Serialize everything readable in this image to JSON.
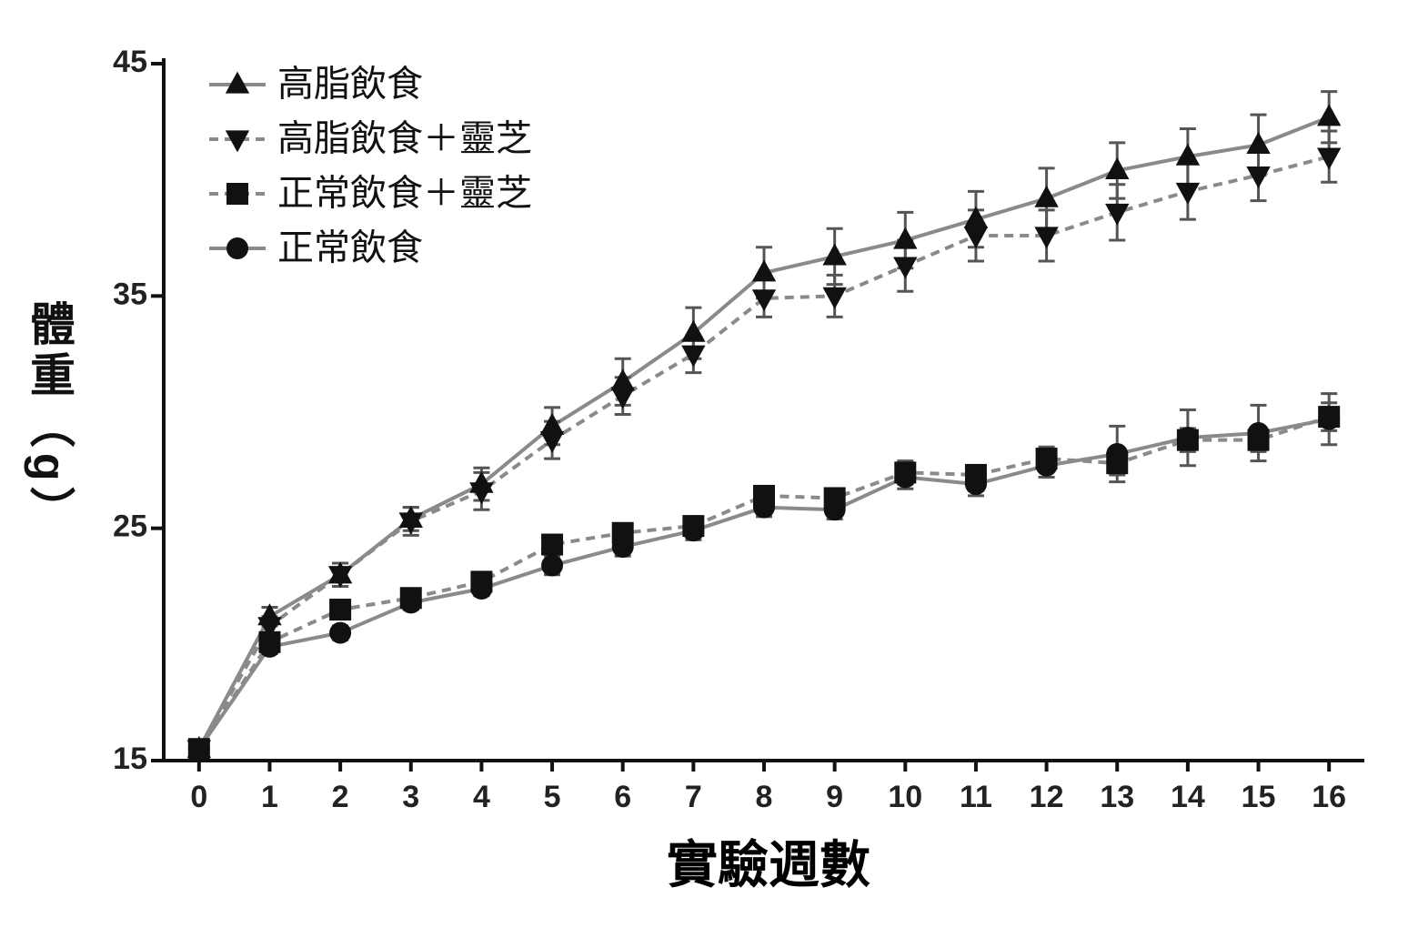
{
  "chart_data": {
    "type": "line",
    "y_label": "體重（g）",
    "x_label": "實驗週數",
    "x": [
      0,
      1,
      2,
      3,
      4,
      5,
      6,
      7,
      8,
      9,
      10,
      11,
      12,
      13,
      14,
      15,
      16
    ],
    "xlim": [
      -0.5,
      16.5
    ],
    "xticks": [
      0,
      1,
      2,
      3,
      4,
      5,
      6,
      7,
      8,
      9,
      10,
      11,
      12,
      13,
      14,
      15,
      16
    ],
    "ylim": [
      15,
      45
    ],
    "yticks": [
      15,
      25,
      35,
      45
    ],
    "legend": "top-left",
    "line_color": "#8a8a8a",
    "series": [
      {
        "name": "高脂飲食",
        "color": "#111111",
        "marker": "triangle-up",
        "dash": false,
        "values": [
          15.5,
          21.2,
          23.0,
          25.4,
          26.9,
          29.4,
          31.3,
          33.4,
          36.0,
          36.7,
          37.4,
          38.3,
          39.2,
          40.4,
          41.0,
          41.5,
          42.7
        ],
        "errors": [
          0.3,
          0.4,
          0.5,
          0.5,
          0.7,
          0.8,
          1.0,
          1.1,
          1.1,
          1.2,
          1.2,
          1.2,
          1.3,
          1.2,
          1.2,
          1.3,
          1.1
        ]
      },
      {
        "name": "高脂飲食＋靈芝",
        "color": "#111111",
        "marker": "triangle-down",
        "dash": true,
        "values": [
          15.5,
          20.8,
          23.0,
          25.3,
          26.6,
          28.8,
          30.7,
          32.5,
          34.9,
          35.0,
          36.3,
          37.6,
          37.6,
          38.6,
          39.5,
          40.2,
          41.0
        ],
        "errors": [
          0.3,
          0.4,
          0.5,
          0.6,
          0.8,
          0.8,
          0.8,
          0.8,
          0.8,
          0.9,
          1.1,
          1.1,
          1.1,
          1.2,
          1.2,
          1.1,
          1.1
        ]
      },
      {
        "name": "正常飲食＋靈芝",
        "color": "#111111",
        "marker": "square",
        "dash": true,
        "values": [
          15.5,
          20.1,
          21.5,
          22.0,
          22.7,
          24.3,
          24.8,
          25.1,
          26.4,
          26.3,
          27.4,
          27.3,
          28.0,
          27.8,
          28.8,
          28.8,
          29.8
        ],
        "errors": [
          0.2,
          0.3,
          0.3,
          0.3,
          0.3,
          0.4,
          0.4,
          0.4,
          0.4,
          0.4,
          0.5,
          0.4,
          0.5,
          0.5,
          0.5,
          0.5,
          0.6
        ]
      },
      {
        "name": "正常飲食",
        "color": "#111111",
        "marker": "circle",
        "dash": false,
        "values": [
          15.5,
          19.9,
          20.5,
          21.8,
          22.4,
          23.4,
          24.2,
          24.9,
          25.9,
          25.8,
          27.2,
          26.9,
          27.7,
          28.2,
          28.9,
          29.1,
          29.7
        ],
        "errors": [
          0.2,
          0.3,
          0.3,
          0.3,
          0.3,
          0.4,
          0.4,
          0.4,
          0.4,
          0.4,
          0.5,
          0.5,
          0.5,
          1.2,
          1.2,
          1.2,
          1.1
        ]
      }
    ]
  }
}
